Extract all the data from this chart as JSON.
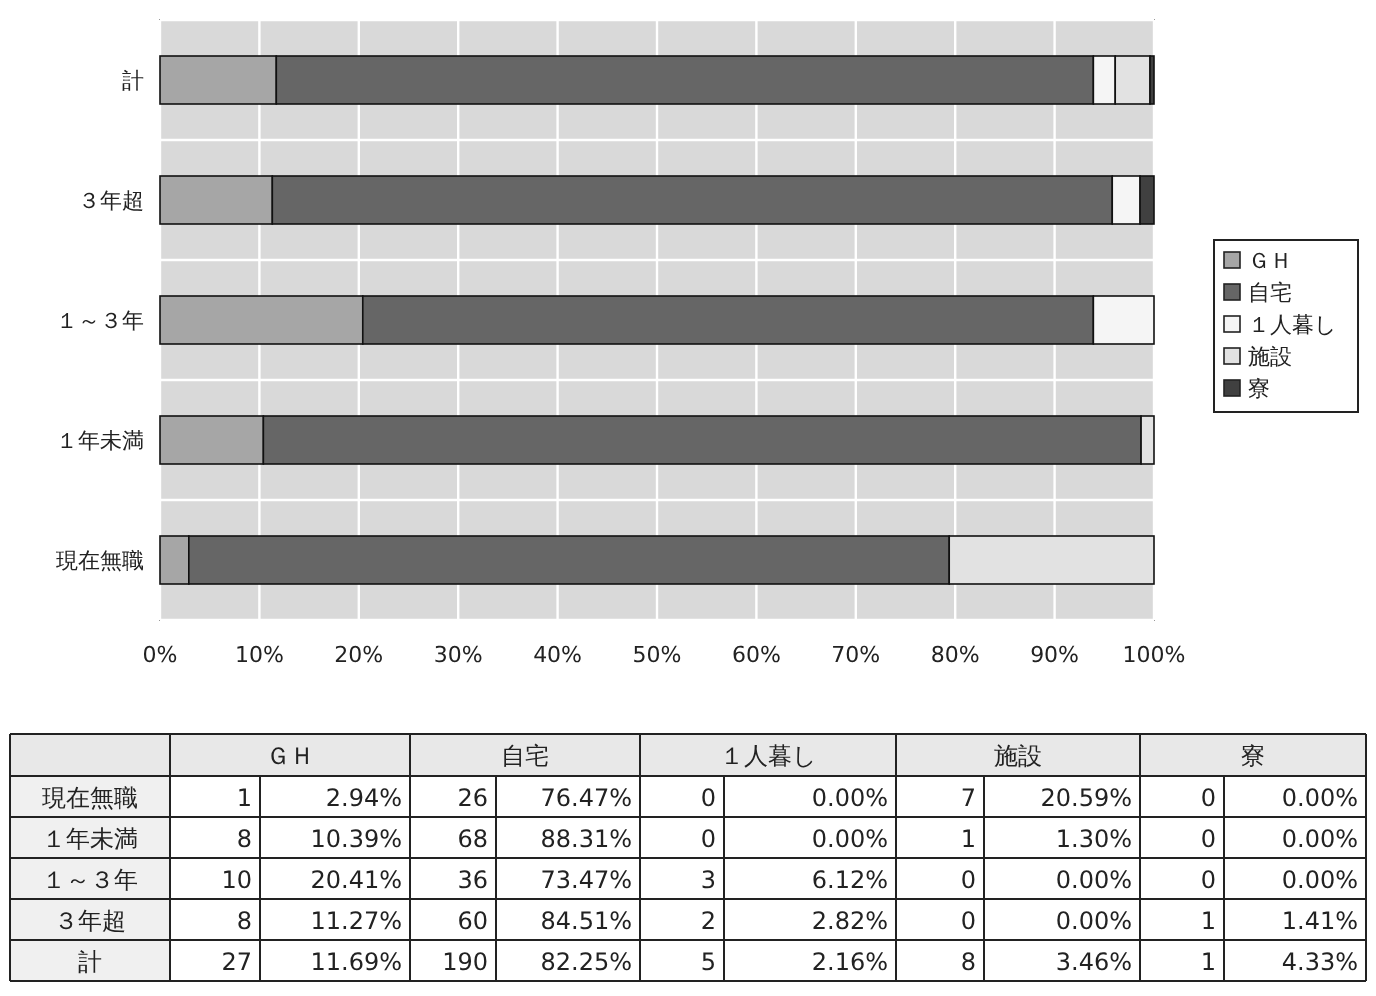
{
  "chart_data": [
    {
      "type": "bar",
      "orientation": "horizontal",
      "stacked": true,
      "legend": "right",
      "grid": "x",
      "categories": [
        "計",
        "３年超",
        "１～３年",
        "１年未満",
        "現在無職"
      ],
      "xlim": [
        0,
        100
      ],
      "xticks": [
        {
          "value": 0,
          "label": "0%"
        },
        {
          "value": 10,
          "label": "10%"
        },
        {
          "value": 20,
          "label": "20%"
        },
        {
          "value": 30,
          "label": "30%"
        },
        {
          "value": 40,
          "label": "40%"
        },
        {
          "value": 50,
          "label": "50%"
        },
        {
          "value": 60,
          "label": "60%"
        },
        {
          "value": 70,
          "label": "70%"
        },
        {
          "value": 80,
          "label": "80%"
        },
        {
          "value": 90,
          "label": "90%"
        },
        {
          "value": 100,
          "label": "100%"
        }
      ],
      "series": [
        {
          "name": "ＧＨ",
          "color": "#a6a6a6",
          "values": [
            11.7,
            11.3,
            20.4,
            10.4,
            2.9
          ]
        },
        {
          "name": "自宅",
          "color": "#666666",
          "values": [
            82.2,
            84.5,
            73.5,
            88.3,
            76.5
          ]
        },
        {
          "name": "１人暮し",
          "color": "#f5f5f5",
          "values": [
            2.2,
            2.8,
            6.1,
            0,
            0
          ]
        },
        {
          "name": "施設",
          "color": "#e2e2e2",
          "values": [
            3.5,
            0,
            0,
            1.3,
            20.6
          ]
        },
        {
          "name": "寮",
          "color": "#404040",
          "values": [
            0.4,
            1.4,
            0,
            0,
            0
          ]
        }
      ]
    },
    {
      "type": "other",
      "data_labels": true,
      "categories": [
        "現在無職",
        "１年未満",
        "１～３年",
        "３年超",
        "計"
      ],
      "series": [
        {
          "name": "ＧＨ",
          "values": [
            1,
            8,
            10,
            8,
            27
          ]
        },
        {
          "values": [
            2.94,
            10.39,
            20.41,
            11.27,
            11.69
          ],
          "value_labels": [
            "2.94%",
            "10.39%",
            "20.41%",
            "11.27%",
            "11.69%"
          ]
        },
        {
          "name": "自宅",
          "values": [
            26,
            68,
            36,
            60,
            190
          ]
        },
        {
          "values": [
            76.47,
            88.31,
            73.47,
            84.51,
            82.25
          ],
          "value_labels": [
            "76.47%",
            "88.31%",
            "73.47%",
            "84.51%",
            "82.25%"
          ]
        },
        {
          "name": "１人暮し",
          "values": [
            0,
            0,
            3,
            2,
            5
          ]
        },
        {
          "values": [
            0,
            0,
            6.12,
            2.82,
            2.16
          ],
          "value_labels": [
            "0.00%",
            "0.00%",
            "6.12%",
            "2.82%",
            "2.16%"
          ]
        },
        {
          "name": "施設",
          "values": [
            7,
            1,
            0,
            0,
            8
          ]
        },
        {
          "values": [
            20.59,
            1.3,
            0,
            0,
            3.46
          ],
          "value_labels": [
            "20.59%",
            "1.30%",
            "0.00%",
            "0.00%",
            "3.46%"
          ]
        },
        {
          "name": "寮",
          "values": [
            0,
            0,
            0,
            1,
            1
          ]
        },
        {
          "values": [
            0,
            0,
            0,
            1.41,
            4.33
          ],
          "value_labels": [
            "0.00%",
            "0.00%",
            "0.00%",
            "1.41%",
            "4.33%"
          ]
        }
      ]
    }
  ]
}
